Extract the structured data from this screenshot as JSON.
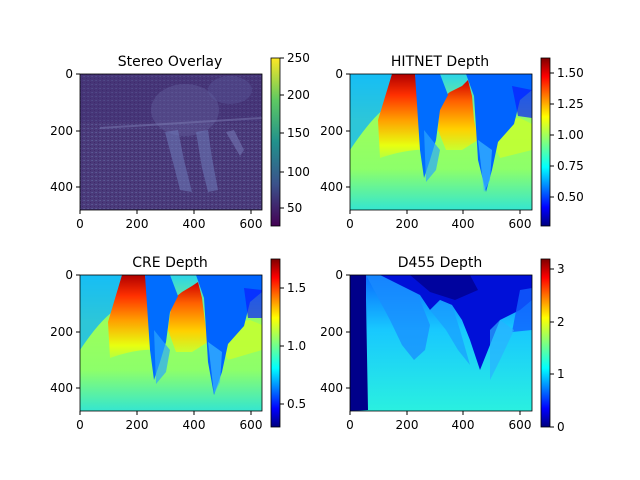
{
  "chart_data": [
    {
      "type": "heatmap",
      "title": "Stereo Overlay",
      "colormap": "viridis",
      "x_ticks": [
        "0",
        "200",
        "400",
        "600"
      ],
      "y_ticks": [
        "0",
        "200",
        "400"
      ],
      "x_range": [
        0,
        640
      ],
      "y_range": [
        0,
        480
      ],
      "colorbar_range": [
        35,
        250
      ],
      "colorbar_ticks": [
        "50",
        "100",
        "150",
        "200",
        "250"
      ]
    },
    {
      "type": "heatmap",
      "title": "HITNET Depth",
      "colormap": "jet",
      "x_ticks": [
        "0",
        "200",
        "400",
        "600"
      ],
      "y_ticks": [
        "0",
        "200",
        "400"
      ],
      "x_range": [
        0,
        640
      ],
      "y_range": [
        0,
        480
      ],
      "colorbar_range": [
        0.3,
        1.62
      ],
      "colorbar_ticks": [
        "0.50",
        "0.75",
        "1.00",
        "1.25",
        "1.50"
      ]
    },
    {
      "type": "heatmap",
      "title": "CRE Depth",
      "colormap": "jet",
      "x_ticks": [
        "0",
        "200",
        "400",
        "600"
      ],
      "y_ticks": [
        "0",
        "200",
        "400"
      ],
      "x_range": [
        0,
        640
      ],
      "y_range": [
        0,
        480
      ],
      "colorbar_range": [
        0.3,
        1.75
      ],
      "colorbar_ticks": [
        "0.5",
        "1.0",
        "1.5"
      ]
    },
    {
      "type": "heatmap",
      "title": "D455 Depth",
      "colormap": "jet",
      "x_ticks": [
        "0",
        "200",
        "400",
        "600"
      ],
      "y_ticks": [
        "0",
        "200",
        "400"
      ],
      "x_range": [
        0,
        640
      ],
      "y_range": [
        0,
        480
      ],
      "colorbar_range": [
        0,
        3.2
      ],
      "colorbar_ticks": [
        "0",
        "1",
        "2",
        "3"
      ]
    }
  ]
}
